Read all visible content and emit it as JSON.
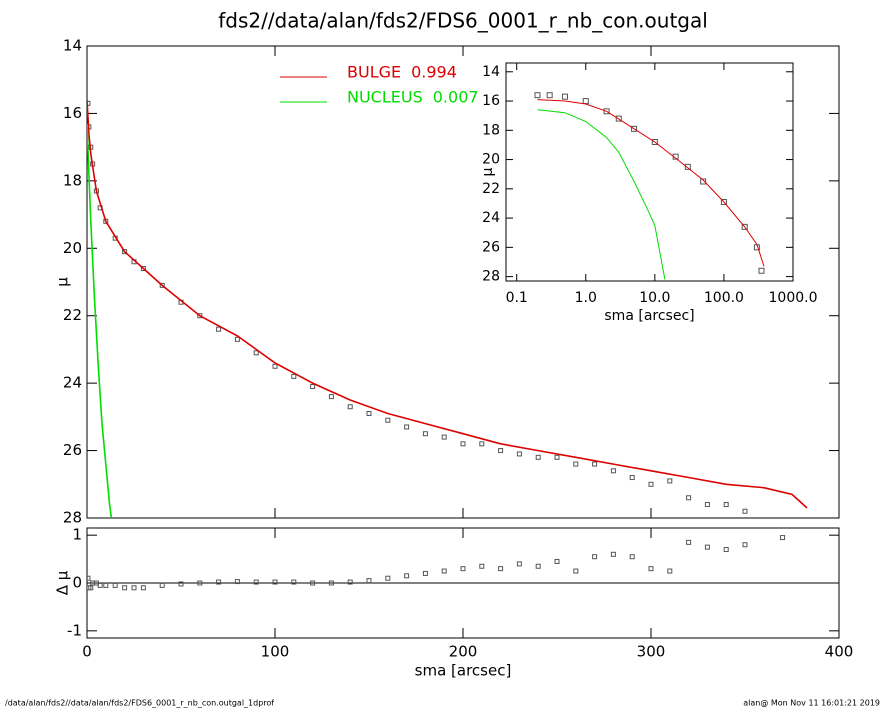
{
  "footer": {
    "left": "/data/alan/fds2//data/alan/fds2/FDS6_0001_r_nb_con.outgal_1dprof",
    "right": "alan@  Mon Nov 11 16:01:21 2019"
  },
  "chart_data": [
    {
      "type": "line",
      "title": "fds2//data/alan/fds2/FDS6_0001_r_nb_con.outgal",
      "ylabel": "μ",
      "xlim": [
        0,
        400
      ],
      "xticks": [
        0,
        100,
        200,
        300,
        400
      ],
      "ylim": [
        28,
        14
      ],
      "yticks": [
        14,
        16,
        18,
        20,
        22,
        24,
        26,
        28
      ],
      "series": [
        {
          "marker": "square",
          "color": "#555555",
          "x": [
            0.5,
            1,
            2,
            3,
            5,
            7,
            10,
            15,
            20,
            25,
            30,
            40,
            50,
            60,
            70,
            80,
            90,
            100,
            110,
            120,
            130,
            140,
            150,
            160,
            170,
            180,
            190,
            200,
            210,
            220,
            230,
            240,
            250,
            260,
            270,
            280,
            290,
            300,
            310,
            320,
            330,
            340,
            350
          ],
          "values": [
            15.7,
            16.4,
            17.0,
            17.5,
            18.3,
            18.8,
            19.2,
            19.7,
            20.1,
            20.4,
            20.6,
            21.1,
            21.6,
            22.0,
            22.4,
            22.7,
            23.1,
            23.5,
            23.8,
            24.1,
            24.4,
            24.7,
            24.9,
            25.1,
            25.3,
            25.5,
            25.6,
            25.8,
            25.8,
            26.0,
            26.1,
            26.2,
            26.2,
            26.4,
            26.4,
            26.6,
            26.8,
            27.0,
            26.9,
            27.4,
            27.6,
            27.6,
            27.8
          ]
        },
        {
          "name": "BULGE",
          "fraction": 0.994,
          "color": "#dd0000",
          "x": [
            0,
            1,
            2,
            5,
            10,
            20,
            30,
            40,
            60,
            80,
            100,
            120,
            140,
            160,
            180,
            200,
            220,
            240,
            260,
            280,
            300,
            320,
            340,
            360,
            375,
            383
          ],
          "values": [
            15.6,
            16.6,
            17.2,
            18.3,
            19.2,
            20.1,
            20.6,
            21.1,
            22.0,
            22.6,
            23.4,
            24.0,
            24.5,
            24.9,
            25.2,
            25.5,
            25.8,
            26.0,
            26.2,
            26.4,
            26.6,
            26.8,
            27.0,
            27.1,
            27.3,
            27.7
          ]
        },
        {
          "name": "NUCLEUS",
          "fraction": 0.007,
          "color": "#00dd00",
          "x": [
            0,
            1,
            2,
            4,
            6,
            8,
            10,
            12,
            13
          ],
          "values": [
            16.3,
            17.8,
            19.2,
            21.5,
            23.5,
            25.2,
            26.4,
            27.6,
            28.0
          ]
        }
      ]
    },
    {
      "type": "scatter",
      "xlabel": "sma [arcsec]",
      "ylabel": "Δ μ",
      "xlim": [
        0,
        400
      ],
      "xticks": [
        0,
        100,
        200,
        300,
        400
      ],
      "ylim": [
        -1.15,
        1.15
      ],
      "yticks": [
        -1,
        0,
        1
      ],
      "series": [
        {
          "marker": "square",
          "color": "#555555",
          "x": [
            0.5,
            1,
            2,
            3,
            5,
            7,
            10,
            15,
            20,
            25,
            30,
            40,
            50,
            60,
            70,
            80,
            90,
            100,
            110,
            120,
            130,
            140,
            150,
            160,
            170,
            180,
            190,
            200,
            210,
            220,
            230,
            240,
            250,
            260,
            270,
            280,
            290,
            300,
            310,
            320,
            330,
            340,
            350,
            370
          ],
          "values": [
            0.1,
            -0.1,
            -0.1,
            0.0,
            0.0,
            -0.05,
            -0.05,
            -0.05,
            -0.1,
            -0.1,
            -0.1,
            -0.05,
            -0.02,
            0.0,
            0.02,
            0.03,
            0.02,
            0.02,
            0.02,
            0.0,
            0.0,
            0.02,
            0.05,
            0.1,
            0.15,
            0.2,
            0.25,
            0.3,
            0.35,
            0.3,
            0.4,
            0.35,
            0.45,
            0.25,
            0.55,
            0.6,
            0.55,
            0.3,
            0.25,
            0.85,
            0.75,
            0.7,
            0.8,
            0.95
          ]
        }
      ]
    },
    {
      "type": "line",
      "xlabel": "sma [arcsec]",
      "ylabel": "μ",
      "xscale": "log",
      "xlim": [
        0.07,
        1000
      ],
      "xticks": [
        {
          "value": 0.1,
          "label": "0.1"
        },
        {
          "value": 1,
          "label": "1.0"
        },
        {
          "value": 10,
          "label": "10.0"
        },
        {
          "value": 100,
          "label": "100.0"
        },
        {
          "value": 1000,
          "label": "1000.0"
        }
      ],
      "ylim": [
        28.3,
        13.4
      ],
      "yticks": [
        14,
        16,
        18,
        20,
        22,
        24,
        26,
        28
      ],
      "series": [
        {
          "marker": "square",
          "color": "#555555",
          "x": [
            0.2,
            0.3,
            0.5,
            1,
            2,
            3,
            5,
            10,
            20,
            30,
            50,
            100,
            200,
            300,
            350
          ],
          "values": [
            15.6,
            15.6,
            15.7,
            16.0,
            16.7,
            17.2,
            17.9,
            18.8,
            19.8,
            20.5,
            21.5,
            22.9,
            24.6,
            26.0,
            27.6
          ]
        },
        {
          "color": "#dd0000",
          "x": [
            0.2,
            0.5,
            1,
            2,
            5,
            10,
            20,
            50,
            100,
            200,
            300,
            380
          ],
          "values": [
            15.9,
            16.0,
            16.2,
            16.7,
            17.9,
            18.8,
            19.9,
            21.4,
            22.9,
            24.6,
            25.8,
            27.3
          ]
        },
        {
          "color": "#00dd00",
          "x": [
            0.2,
            0.5,
            1,
            2,
            3,
            5,
            8,
            10,
            12,
            14
          ],
          "values": [
            16.6,
            16.8,
            17.4,
            18.5,
            19.5,
            21.5,
            23.5,
            24.5,
            26.5,
            28.2
          ]
        }
      ]
    }
  ]
}
